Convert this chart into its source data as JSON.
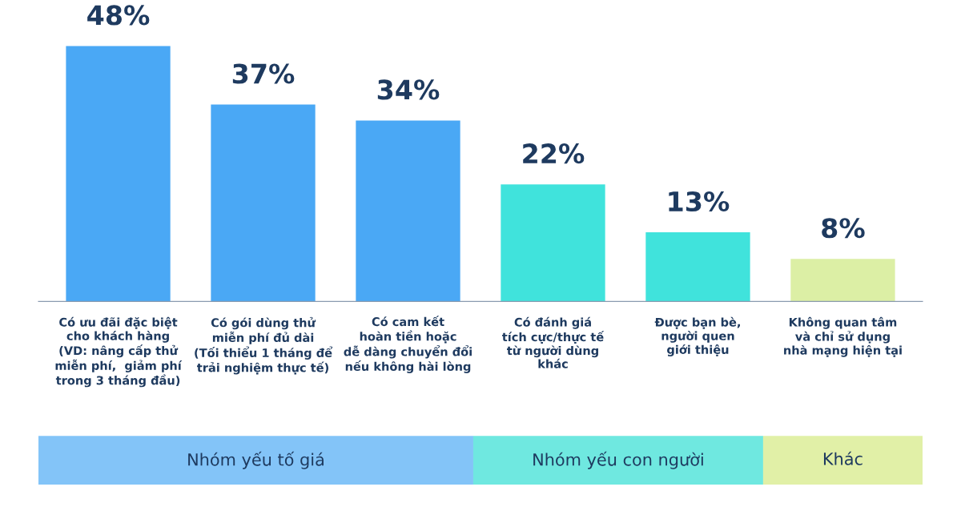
{
  "chart_data": {
    "type": "bar",
    "categories": [
      "Có ưu đãi đặc biệt\ncho khách hàng\n(VD: nâng cấp thử\nmiễn phí,  giảm phí\ntrong 3 tháng đầu)",
      "Có gói dùng thử\nmiễn phí đủ dài\n(Tối thiểu 1 tháng để\ntrải nghiệm thực tế)",
      "Có cam kết\nhoàn tiền hoặc\ndễ dàng chuyển đổi\nnếu không hài lòng",
      "Có đánh giá\ntích cực/thực tế\ntừ người dùng\nkhác",
      "Được bạn bè,\nngười quen\ngiới thiệu",
      "Không quan tâm\nvà chỉ sử dụng\nnhà mạng hiện tại"
    ],
    "values": [
      48,
      37,
      34,
      22,
      13,
      8
    ],
    "value_labels": [
      "48%",
      "37%",
      "34%",
      "22%",
      "13%",
      "8%"
    ],
    "colors": [
      "#4aa8f5",
      "#4aa8f5",
      "#4aa8f5",
      "#40e3dc",
      "#40e3dc",
      "#dcefa5"
    ],
    "annotations": [
      "Nhóm yếu tố giá",
      "Nhóm yếu con người",
      "Khác"
    ],
    "grid": false
  }
}
